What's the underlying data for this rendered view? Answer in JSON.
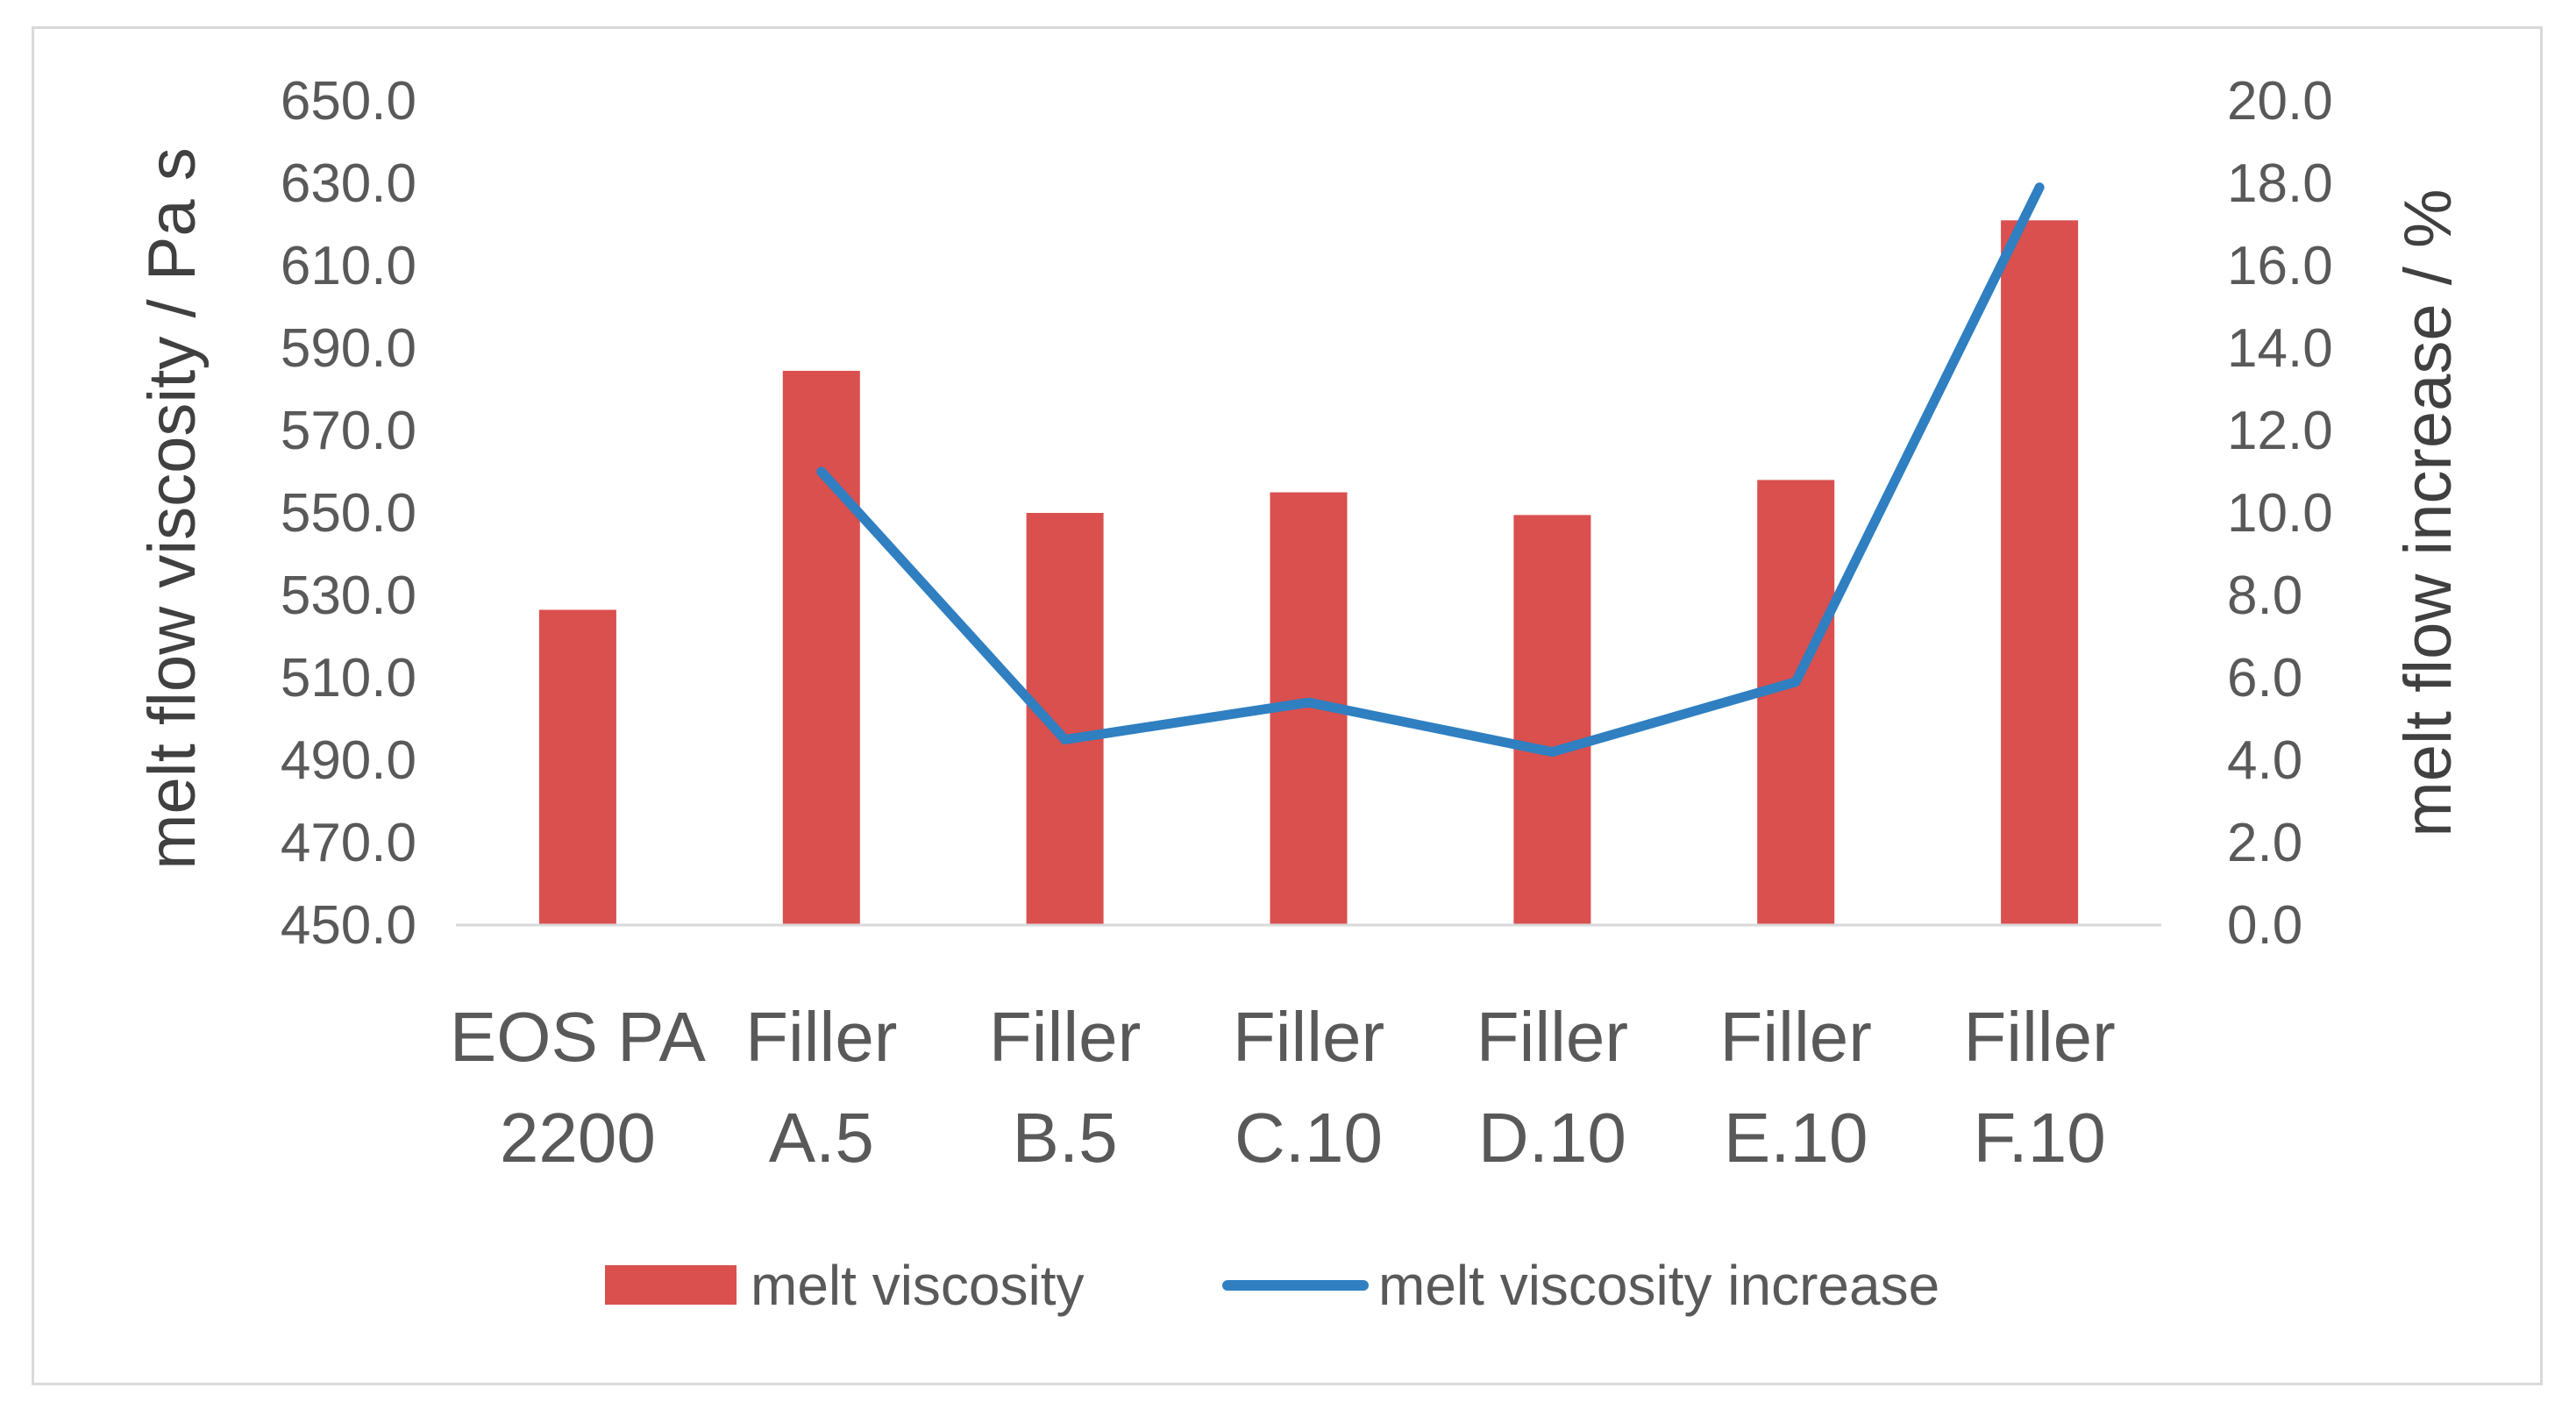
{
  "chart_data": {
    "type": "bar",
    "categories": [
      [
        "EOS PA",
        "2200"
      ],
      [
        "Filler",
        "A.5"
      ],
      [
        "Filler",
        "B.5"
      ],
      [
        "Filler",
        "C.10"
      ],
      [
        "Filler",
        "D.10"
      ],
      [
        "Filler",
        "E.10"
      ],
      [
        "Filler",
        "F.10"
      ]
    ],
    "series": [
      {
        "name": "melt viscosity",
        "type": "bar",
        "axis": "left",
        "color": "#d9504f",
        "values": [
          526.5,
          584.5,
          550.0,
          555.0,
          549.5,
          558.0,
          621.0
        ]
      },
      {
        "name": "melt viscosity increase",
        "type": "line",
        "axis": "right",
        "color": "#2f7fc1",
        "values": [
          null,
          11.0,
          4.5,
          5.4,
          4.2,
          5.9,
          17.9
        ]
      }
    ],
    "ylabel": "melt flow viscosity / Pa s",
    "ylabel_right": "melt flow increase / %",
    "ylim": [
      450,
      650
    ],
    "ylim_right": [
      0,
      20
    ],
    "yticks": [
      "450.0",
      "470.0",
      "490.0",
      "510.0",
      "530.0",
      "550.0",
      "570.0",
      "590.0",
      "610.0",
      "630.0",
      "650.0"
    ],
    "yticks_right": [
      "0.0",
      "2.0",
      "4.0",
      "6.0",
      "8.0",
      "10.0",
      "12.0",
      "14.0",
      "16.0",
      "18.0",
      "20.0"
    ],
    "grid": false,
    "legend_position": "bottom"
  },
  "legend": {
    "bar_label": "melt viscosity",
    "line_label": "melt viscosity increase"
  }
}
